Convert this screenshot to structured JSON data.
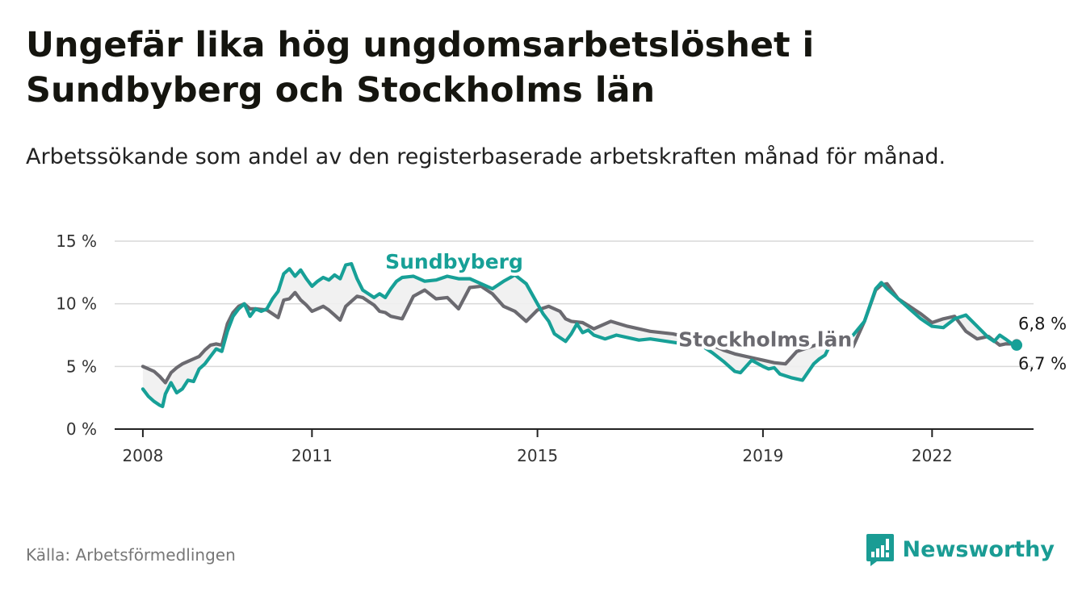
{
  "header": {
    "title": "Ungefär lika hög ungdomsarbetslöshet i Sundbyberg och Stockholms län",
    "subtitle": "Arbetssökande som andel av den registerbaserade arbetskraften månad för månad."
  },
  "footer": {
    "source": "Källa: Arbetsförmedlingen",
    "brand": "Newsworthy"
  },
  "colors": {
    "sundbyberg": "#17a097",
    "stockholm": "#6b6a70",
    "brand": "#1a9c94",
    "grid": "#d9d9d9"
  },
  "chart_data": {
    "type": "line",
    "title": "Ungefär lika hög ungdomsarbetslöshet i Sundbyberg och Stockholms län",
    "xlabel": "",
    "ylabel": "",
    "ylim": [
      0,
      15
    ],
    "xlim": [
      2007.5,
      2023.8
    ],
    "yticks": [
      0,
      5,
      10,
      15
    ],
    "ytick_labels": [
      "0 %",
      "5 %",
      "10 %",
      "15 %"
    ],
    "xticks": [
      2008,
      2011,
      2015,
      2019,
      2022
    ],
    "xtick_labels": [
      "2008",
      "2011",
      "2015",
      "2019",
      "2022"
    ],
    "grid": true,
    "series": [
      {
        "name": "Sundbyberg",
        "label_text": "Sundbyberg",
        "end_label": "6,7 %",
        "x": [
          2008.0,
          2008.1,
          2008.2,
          2008.3,
          2008.35,
          2008.4,
          2008.5,
          2008.6,
          2008.7,
          2008.8,
          2008.9,
          2009.0,
          2009.1,
          2009.2,
          2009.3,
          2009.4,
          2009.5,
          2009.6,
          2009.7,
          2009.8,
          2009.9,
          2010.0,
          2010.1,
          2010.2,
          2010.3,
          2010.4,
          2010.5,
          2010.6,
          2010.7,
          2010.8,
          2010.9,
          2011.0,
          2011.1,
          2011.2,
          2011.3,
          2011.4,
          2011.5,
          2011.6,
          2011.7,
          2011.8,
          2011.9,
          2012.0,
          2012.1,
          2012.2,
          2012.3,
          2012.4,
          2012.5,
          2012.6,
          2012.8,
          2013.0,
          2013.2,
          2013.4,
          2013.6,
          2013.8,
          2014.0,
          2014.2,
          2014.4,
          2014.6,
          2014.8,
          2015.0,
          2015.1,
          2015.2,
          2015.3,
          2015.4,
          2015.5,
          2015.6,
          2015.7,
          2015.8,
          2015.9,
          2016.0,
          2016.2,
          2016.4,
          2016.6,
          2016.8,
          2017.0,
          2017.3,
          2017.6,
          2017.9,
          2018.1,
          2018.3,
          2018.5,
          2018.6,
          2018.8,
          2019.0,
          2019.1,
          2019.2,
          2019.3,
          2019.5,
          2019.7,
          2019.9,
          2020.0,
          2020.1,
          2020.2,
          2020.3,
          2020.4,
          2020.6,
          2020.8,
          2021.0,
          2021.1,
          2021.2,
          2021.4,
          2021.6,
          2021.8,
          2022.0,
          2022.2,
          2022.4,
          2022.6,
          2022.8,
          2023.0,
          2023.1,
          2023.2,
          2023.3,
          2023.45,
          2023.5
        ],
        "values": [
          3.2,
          2.6,
          2.2,
          1.9,
          1.8,
          2.8,
          3.7,
          2.9,
          3.2,
          3.9,
          3.8,
          4.8,
          5.2,
          5.8,
          6.4,
          6.2,
          7.8,
          9.0,
          9.6,
          10.0,
          9.0,
          9.6,
          9.4,
          9.6,
          10.4,
          11.0,
          12.4,
          12.8,
          12.2,
          12.7,
          12.0,
          11.4,
          11.8,
          12.1,
          11.9,
          12.3,
          12.0,
          13.1,
          13.2,
          12.0,
          11.1,
          10.8,
          10.5,
          10.8,
          10.5,
          11.2,
          11.8,
          12.1,
          12.2,
          11.8,
          11.9,
          12.2,
          12.0,
          12.0,
          11.6,
          11.2,
          11.8,
          12.3,
          11.6,
          10.0,
          9.2,
          8.6,
          7.6,
          7.3,
          7.0,
          7.6,
          8.4,
          7.7,
          7.9,
          7.5,
          7.2,
          7.5,
          7.3,
          7.1,
          7.2,
          7.0,
          6.8,
          6.7,
          6.1,
          5.4,
          4.6,
          4.5,
          5.5,
          5.0,
          4.8,
          4.9,
          4.4,
          4.1,
          3.9,
          5.2,
          5.6,
          5.9,
          6.8,
          7.2,
          6.8,
          7.5,
          8.6,
          11.2,
          11.7,
          11.2,
          10.4,
          9.6,
          8.8,
          8.2,
          8.1,
          8.8,
          9.1,
          8.2,
          7.3,
          7.0,
          7.5,
          7.2,
          6.7,
          6.7
        ],
        "label_at_x": 2012.3,
        "label_at_y": 12.8,
        "hidden_ranges": [
          [
            2012.0,
            2015.0
          ],
          [
            2016.8,
            2017.8
          ]
        ]
      },
      {
        "name": "Stockholms län",
        "label_text": "Stockholms län",
        "end_label": "6,8 %",
        "x": [
          2008.0,
          2008.2,
          2008.3,
          2008.4,
          2008.5,
          2008.6,
          2008.7,
          2008.8,
          2008.9,
          2009.0,
          2009.1,
          2009.2,
          2009.3,
          2009.4,
          2009.5,
          2009.6,
          2009.7,
          2009.8,
          2009.9,
          2010.0,
          2010.2,
          2010.4,
          2010.5,
          2010.6,
          2010.7,
          2010.8,
          2010.9,
          2011.0,
          2011.2,
          2011.3,
          2011.4,
          2011.5,
          2011.6,
          2011.7,
          2011.8,
          2011.9,
          2012.0,
          2012.1,
          2012.2,
          2012.3,
          2012.4,
          2012.6,
          2012.8,
          2013.0,
          2013.2,
          2013.4,
          2013.6,
          2013.8,
          2014.0,
          2014.2,
          2014.4,
          2014.6,
          2014.8,
          2015.0,
          2015.2,
          2015.4,
          2015.5,
          2015.6,
          2015.8,
          2016.0,
          2016.3,
          2016.6,
          2017.0,
          2017.4,
          2017.8,
          2018.0,
          2018.3,
          2018.5,
          2018.7,
          2018.9,
          2019.0,
          2019.2,
          2019.4,
          2019.6,
          2019.8,
          2020.0,
          2020.2,
          2020.4,
          2020.6,
          2020.8,
          2021.0,
          2021.1,
          2021.2,
          2021.4,
          2021.6,
          2021.8,
          2022.0,
          2022.2,
          2022.4,
          2022.6,
          2022.8,
          2023.0,
          2023.2,
          2023.3,
          2023.45,
          2023.5
        ],
        "values": [
          5.0,
          4.6,
          4.2,
          3.7,
          4.5,
          4.9,
          5.2,
          5.4,
          5.6,
          5.8,
          6.3,
          6.7,
          6.8,
          6.7,
          8.4,
          9.3,
          9.8,
          10.0,
          9.6,
          9.6,
          9.5,
          8.9,
          10.3,
          10.4,
          10.9,
          10.3,
          9.9,
          9.4,
          9.8,
          9.5,
          9.1,
          8.7,
          9.8,
          10.2,
          10.6,
          10.5,
          10.2,
          9.9,
          9.4,
          9.3,
          9.0,
          8.8,
          10.6,
          11.1,
          10.4,
          10.5,
          9.6,
          11.3,
          11.4,
          10.8,
          9.8,
          9.4,
          8.6,
          9.5,
          9.8,
          9.4,
          8.8,
          8.6,
          8.5,
          8.0,
          8.6,
          8.2,
          7.8,
          7.6,
          7.2,
          6.9,
          6.3,
          6.0,
          5.8,
          5.6,
          5.5,
          5.3,
          5.2,
          6.2,
          6.5,
          6.8,
          6.5,
          6.9,
          6.6,
          8.6,
          11.1,
          11.5,
          11.6,
          10.4,
          9.8,
          9.2,
          8.5,
          8.8,
          9.0,
          7.8,
          7.2,
          7.4,
          6.7,
          6.8,
          6.8,
          6.8
        ],
        "label_at_x": 2017.5,
        "label_at_y": 6.6,
        "hidden_ranges": [
          [
            2017.2,
            2019.3
          ]
        ]
      }
    ]
  }
}
